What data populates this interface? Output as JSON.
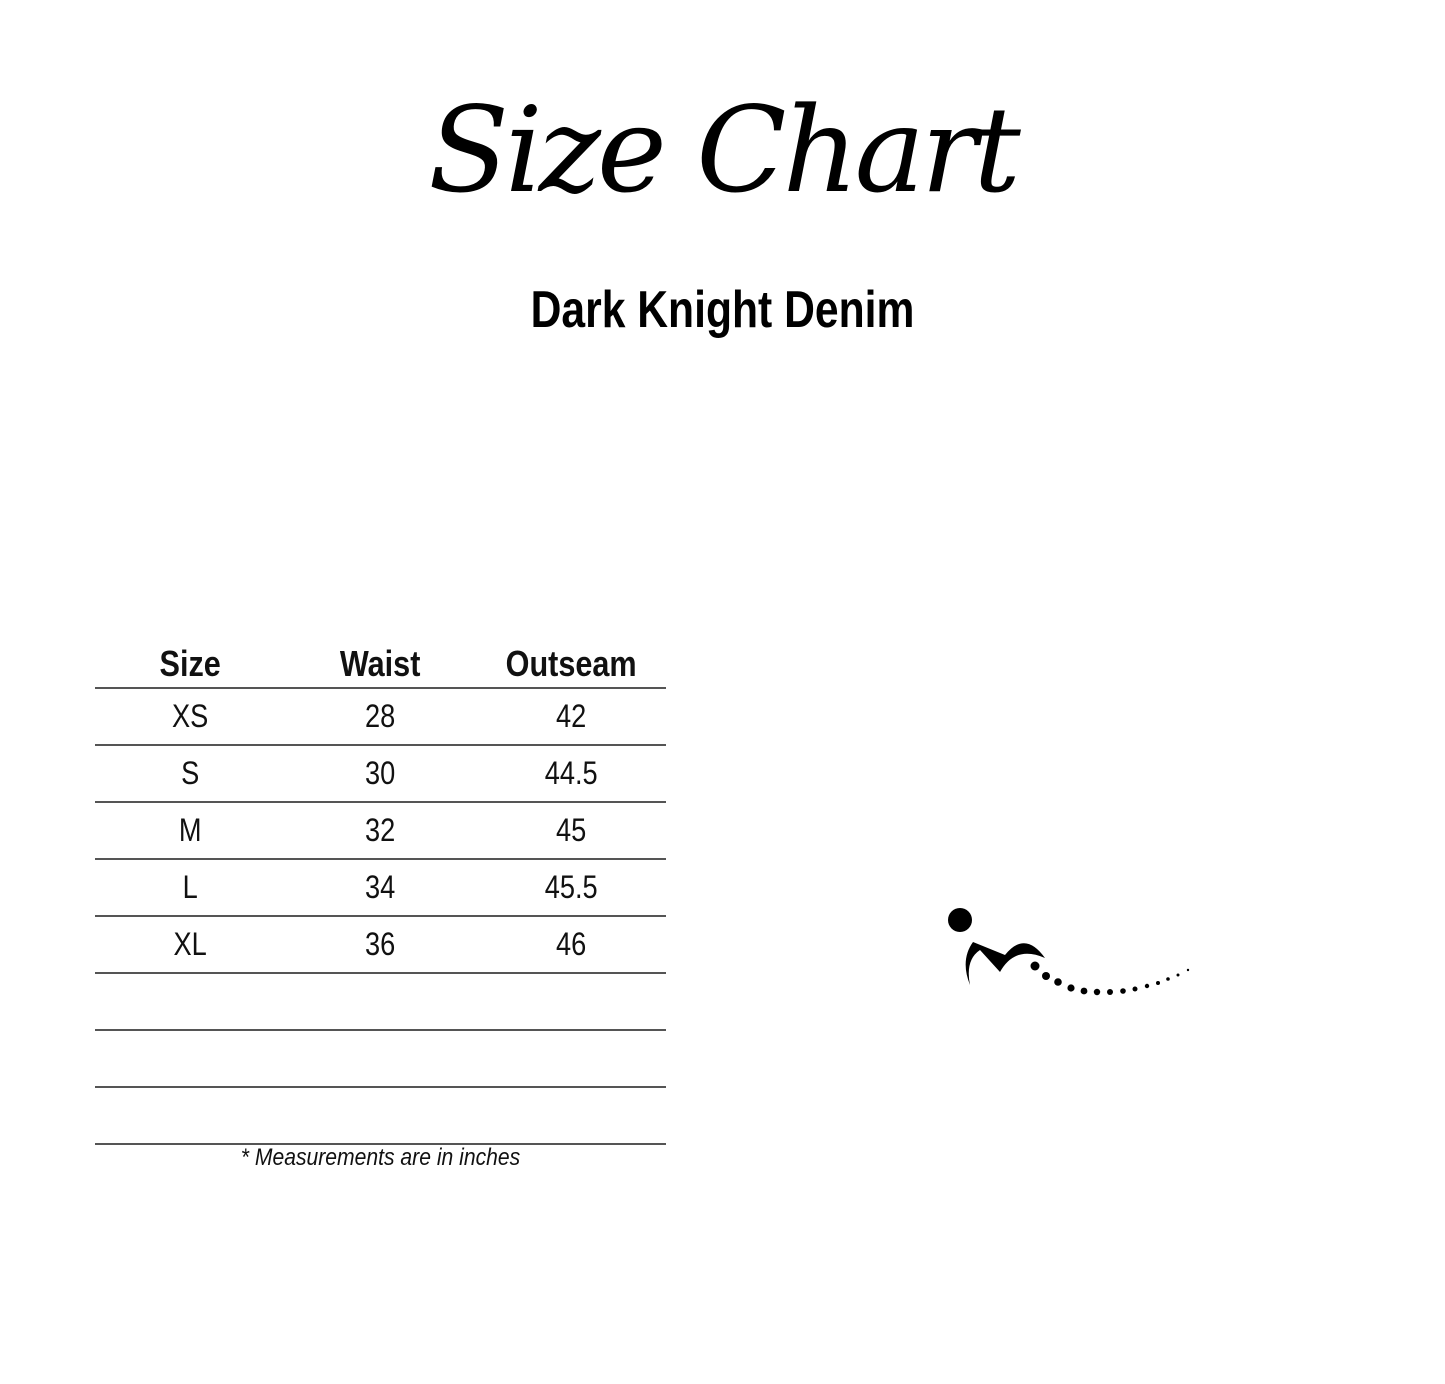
{
  "title": "Size Chart",
  "subtitle": "Dark Knight Denim",
  "table": {
    "headers": [
      "Size",
      "Waist",
      "Outseam"
    ],
    "rows": [
      [
        "XS",
        "28",
        "42"
      ],
      [
        "S",
        "30",
        "44.5"
      ],
      [
        "M",
        "32",
        "45"
      ],
      [
        "L",
        "34",
        "45.5"
      ],
      [
        "XL",
        "36",
        "46"
      ],
      [
        "",
        "",
        ""
      ],
      [
        "",
        "",
        ""
      ],
      [
        "",
        "",
        ""
      ]
    ]
  },
  "footnote": "* Measurements are in inches",
  "logo": {
    "icon": "leaping-figure-logo-icon"
  }
}
